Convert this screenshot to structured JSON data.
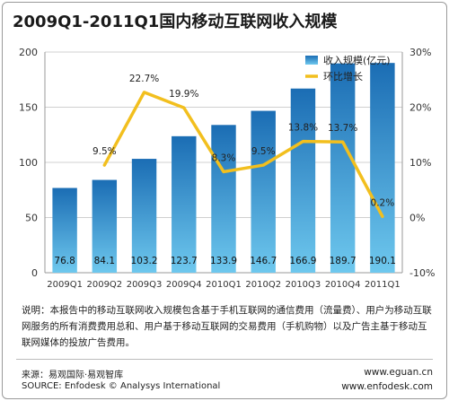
{
  "title": "2009Q1-2011Q1国内移动互联网收入规模",
  "chart_data": {
    "type": "bar",
    "categories": [
      "2009Q1",
      "2009Q2",
      "2009Q3",
      "2009Q4",
      "2010Q1",
      "2010Q2",
      "2010Q3",
      "2010Q4",
      "2011Q1"
    ],
    "series": [
      {
        "name": "收入规模(亿元)",
        "type": "bar",
        "axis": "left",
        "values": [
          76.8,
          84.1,
          103.2,
          123.7,
          133.9,
          146.7,
          166.9,
          189.7,
          190.1
        ],
        "labels": [
          "76.8",
          "84.1",
          "103.2",
          "123.7",
          "133.9",
          "146.7",
          "166.9",
          "189.7",
          "190.1"
        ]
      },
      {
        "name": "环比增长",
        "type": "line",
        "axis": "right",
        "values": [
          null,
          9.5,
          22.7,
          19.9,
          8.3,
          9.5,
          13.8,
          13.7,
          0.2
        ],
        "labels": [
          null,
          "9.5%",
          "22.7%",
          "19.9%",
          "8.3%",
          "9.5%",
          "13.8%",
          "13.7%",
          "0.2%"
        ]
      }
    ],
    "y_left": {
      "ylim": [
        0,
        200
      ],
      "ticks": [
        0,
        50,
        100,
        150,
        200
      ],
      "tick_labels": [
        "0",
        "50",
        "100",
        "150",
        "200"
      ]
    },
    "y_right": {
      "ylim": [
        -10,
        30
      ],
      "ticks": [
        -10,
        0,
        10,
        20,
        30
      ],
      "tick_labels": [
        "-10%",
        "0%",
        "10%",
        "20%",
        "30%"
      ]
    },
    "grid": true,
    "legend": "top-right",
    "colors": {
      "bar_top": "#1b6db4",
      "bar_bottom": "#6ec8ee",
      "line": "#f2bf1e",
      "grid": "#d0d0d0",
      "axis": "#999999"
    }
  },
  "note": "说明：本报告中的移动互联网收入规模包含基于手机互联网的通信费用（流量费）、用户为移动互联网服务的所有消费费用总和、用户基于移动互联网的交易费用（手机购物）以及广告主基于移动互联网媒体的投放广告费用。",
  "source_cn": "来源：易观国际·易观智库",
  "source_en": "SOURCE: Enfodesk © Analysys International",
  "url1": "www.eguan.cn",
  "url2": "www.enfodesk.com"
}
